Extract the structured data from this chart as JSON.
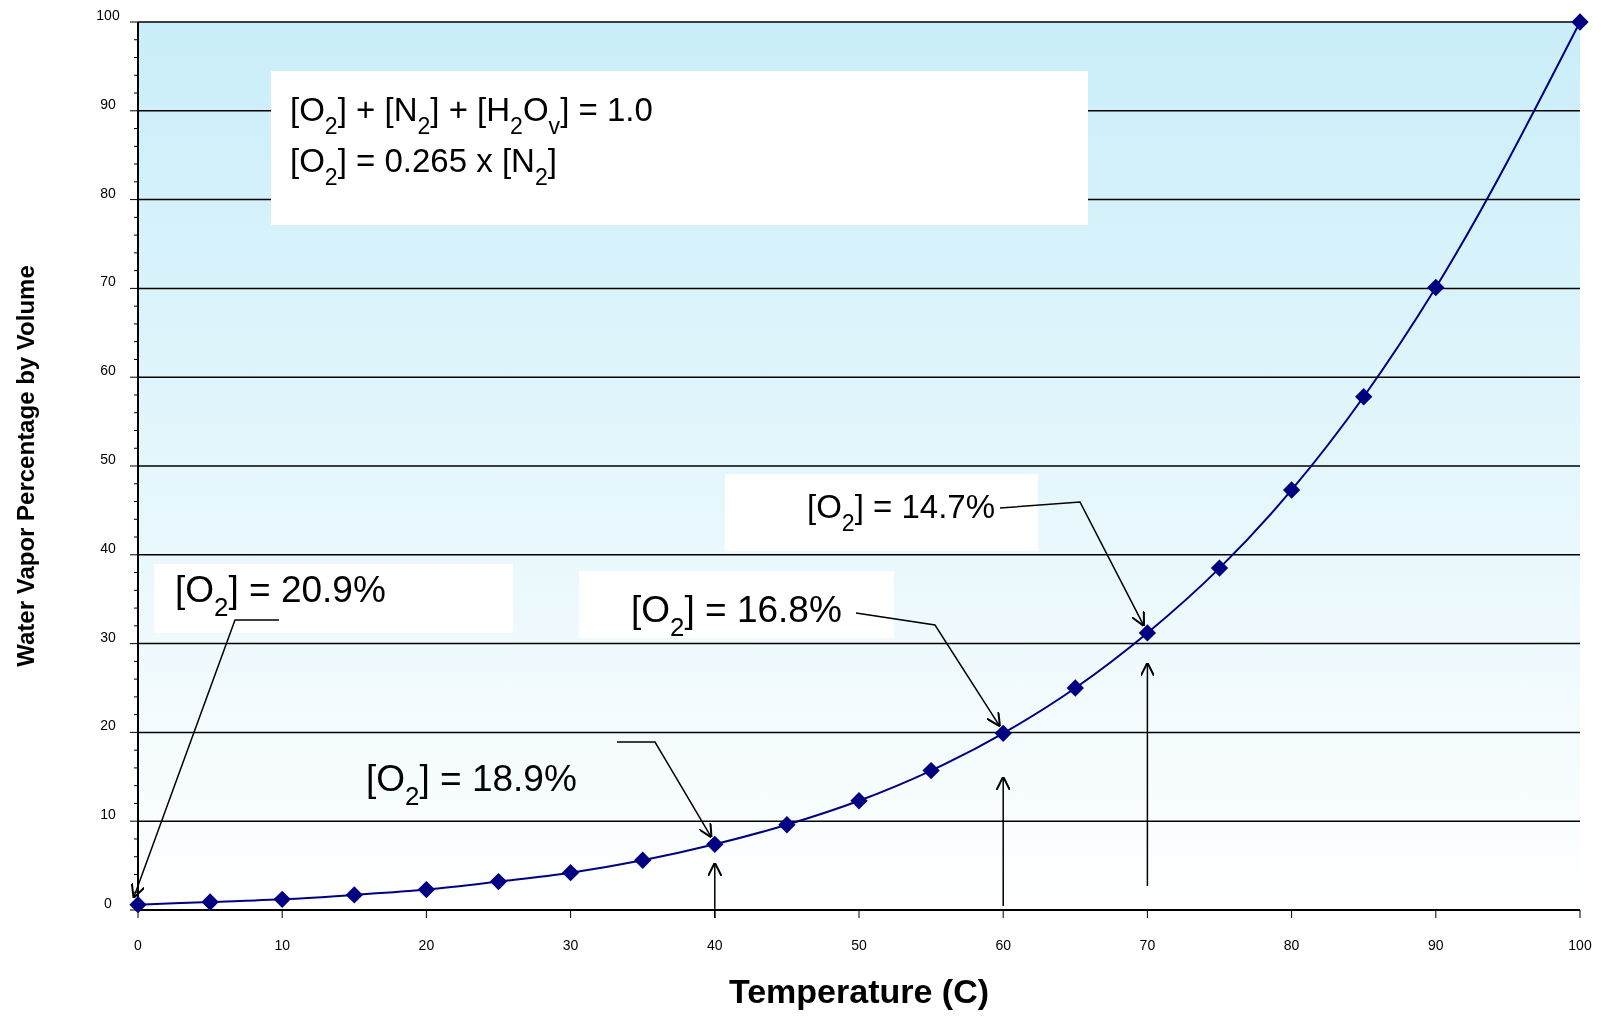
{
  "chart_data": {
    "type": "line",
    "xlabel": "Temperature (C)",
    "ylabel": "Water Vapor Percentage by Volume",
    "x": [
      0,
      5,
      10,
      15,
      20,
      25,
      30,
      35,
      40,
      45,
      50,
      55,
      60,
      65,
      70,
      75,
      80,
      85,
      90,
      100
    ],
    "series": [
      {
        "color": "#000080",
        "values": [
          0.6,
          0.9,
          1.2,
          1.7,
          2.3,
          3.2,
          4.2,
          5.6,
          7.4,
          9.6,
          12.3,
          15.7,
          19.9,
          25.0,
          31.2,
          38.5,
          47.3,
          57.8,
          70.1,
          100
        ]
      }
    ],
    "xlim": [
      0,
      100
    ],
    "ylim": [
      0,
      100
    ],
    "xticks": [
      0,
      10,
      20,
      30,
      40,
      50,
      60,
      70,
      80,
      90,
      100
    ],
    "yticks": [
      0,
      10,
      20,
      30,
      40,
      50,
      60,
      70,
      80,
      90,
      100
    ],
    "grid": "y",
    "marker": "diamond",
    "line_style": "solid",
    "annotations": [
      "[O$_{2}$] + [N$_{2}$] + [H$_{2}$O$_{v}$] = 1.0\n[O$_{2}$] = 0.265 x [N$_{2}$]",
      {
        "text": "[O$_{2}$] = 20.9%",
        "x": 0,
        "y": 0.6
      },
      {
        "text": "[O$_{2}$] = 18.9%",
        "x": 40,
        "y": 7.4
      },
      {
        "text": "[O$_{2}$] = 16.8%",
        "x": 60,
        "y": 19.9
      },
      {
        "text": "[O$_{2}$] = 14.7%",
        "x": 70,
        "y": 31.2
      }
    ]
  }
}
